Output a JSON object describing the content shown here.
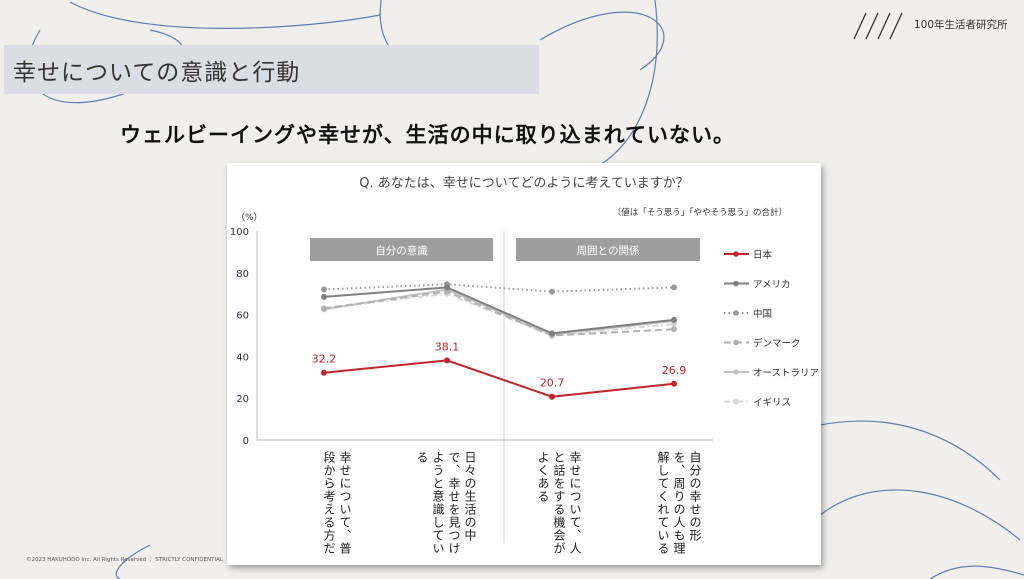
{
  "page": {
    "section_title": "幸せについての意識と行動",
    "brand": "100年生活者研究所",
    "headline": "ウェルビーイングや幸せが、生活の中に取り込まれていない。",
    "footer": "©2023 HAKUHODO Inc. All Rights Reserved ｜ STRICTLY CONFIDENTIAL"
  },
  "chart_data": {
    "type": "line",
    "title": "Q. あなたは、幸せについてどのように考えていますか？",
    "note": "〔値は「そう思う」「ややそう思う」の合計〕",
    "ylabel": "（%）",
    "ylim": [
      0,
      100
    ],
    "yticks": [
      "0",
      "20",
      "40",
      "60",
      "80",
      "100"
    ],
    "group_labels": [
      "自分の意識",
      "周囲との関係"
    ],
    "categories": [
      "幸せについて、\n普段から考える方だ",
      "日々の生活の中で、\n幸せを見つけようと\n意識している",
      "幸せについて、\n人と話をする機会が\nよくある",
      "自分の幸せの形を、\n周りの人も\n理解してくれている"
    ],
    "series": [
      {
        "name": "日本",
        "values": [
          32.2,
          38.1,
          20.7,
          26.9
        ],
        "color": "#c0262c",
        "style": "solid",
        "labeled": true
      },
      {
        "name": "アメリカ",
        "values": [
          68.5,
          73.0,
          51.0,
          57.5
        ],
        "color": "#808080",
        "style": "solid"
      },
      {
        "name": "中国",
        "values": [
          72.0,
          74.5,
          71.0,
          73.0
        ],
        "color": "#9a9a9a",
        "style": "dotted"
      },
      {
        "name": "デンマーク",
        "values": [
          63.0,
          71.0,
          50.0,
          53.0
        ],
        "color": "#b0b0b0",
        "style": "dashed"
      },
      {
        "name": "オーストラリア",
        "values": [
          62.5,
          72.0,
          50.5,
          57.0
        ],
        "color": "#c2c2c2",
        "style": "solid"
      },
      {
        "name": "イギリス",
        "values": [
          63.0,
          70.0,
          50.0,
          55.5
        ],
        "color": "#d7d7d7",
        "style": "dashdot"
      }
    ],
    "grid": false,
    "legend": "right"
  }
}
